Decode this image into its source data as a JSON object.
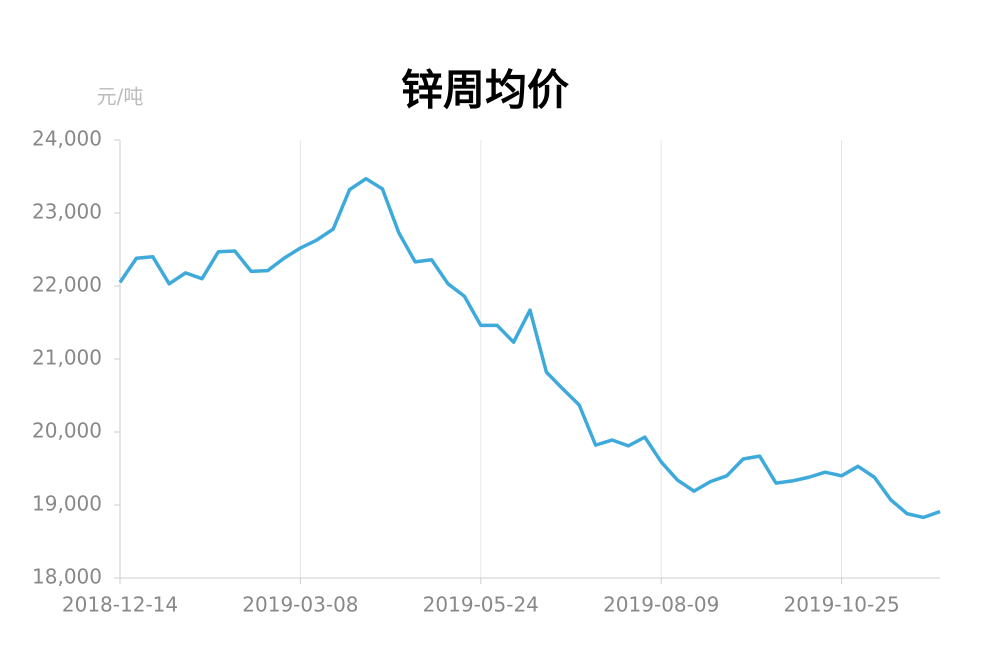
{
  "chart_data": {
    "type": "line",
    "title": "锌周均价",
    "y_unit": "元/吨",
    "categories": [
      "2018-12-14",
      null,
      null,
      null,
      null,
      null,
      null,
      null,
      null,
      null,
      null,
      "2019-03-08",
      null,
      null,
      null,
      null,
      null,
      null,
      null,
      null,
      null,
      null,
      "2019-05-24",
      null,
      null,
      null,
      null,
      null,
      null,
      null,
      null,
      null,
      null,
      "2019-08-09",
      null,
      null,
      null,
      null,
      null,
      null,
      null,
      null,
      null,
      null,
      "2019-10-25",
      null,
      null,
      null,
      null,
      null,
      null
    ],
    "series": [
      {
        "color": "#3eaadc",
        "values": [
          22050,
          22380,
          22400,
          22030,
          22180,
          22100,
          22470,
          22480,
          22200,
          22210,
          22380,
          22520,
          22630,
          22780,
          23320,
          23470,
          23330,
          22730,
          22330,
          22360,
          22030,
          21860,
          21460,
          21460,
          21230,
          21670,
          20820,
          20590,
          20370,
          19820,
          19890,
          19810,
          19930,
          19590,
          19340,
          19190,
          19320,
          19400,
          19630,
          19670,
          19300,
          19330,
          19380,
          19450,
          19400,
          19530,
          19380,
          19070,
          18880,
          18830,
          18910
        ]
      }
    ],
    "ylim": [
      18000,
      24000
    ],
    "yticks": [
      {
        "value": 18000,
        "label": "18,000"
      },
      {
        "value": 19000,
        "label": "19,000"
      },
      {
        "value": 20000,
        "label": "20,000"
      },
      {
        "value": 21000,
        "label": "21,000"
      },
      {
        "value": 22000,
        "label": "22,000"
      },
      {
        "value": 23000,
        "label": "23,000"
      },
      {
        "value": 24000,
        "label": "24,000"
      }
    ],
    "grid": "x"
  }
}
